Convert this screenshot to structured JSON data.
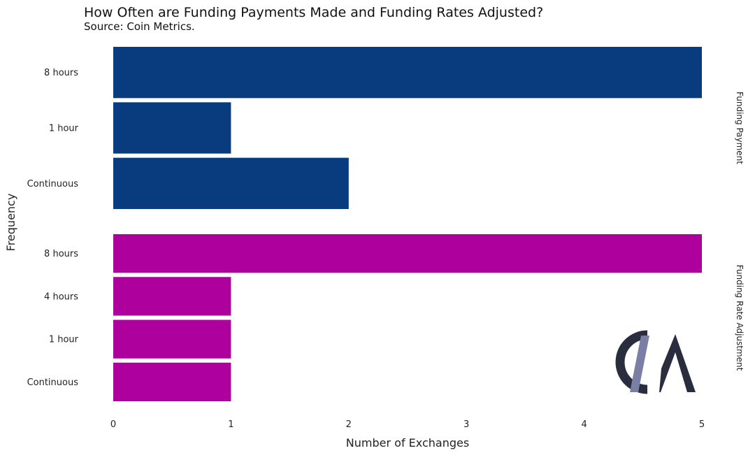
{
  "chart_data": {
    "type": "bar",
    "orientation": "horizontal",
    "title": "How Often are Funding Payments Made and Funding Rates Adjusted?",
    "subtitle": "Source: Coin Metrics.",
    "xlabel": "Number of Exchanges",
    "ylabel": "Frequency",
    "xlim": [
      0,
      5
    ],
    "xticks": [
      0,
      1,
      2,
      3,
      4,
      5
    ],
    "grid": false,
    "facets": [
      {
        "name": "Funding Payment",
        "color": "#083c7f",
        "categories": [
          "8 hours",
          "1 hour",
          "Continuous"
        ],
        "values": [
          5,
          1,
          2
        ]
      },
      {
        "name": "Funding Rate Adjustment",
        "color": "#ae009d",
        "categories": [
          "8 hours",
          "4 hours",
          "1 hour",
          "Continuous"
        ],
        "values": [
          5,
          1,
          1,
          1
        ]
      }
    ]
  },
  "logo": {
    "text": "CM",
    "colors": {
      "dark": "#2a2d3e",
      "slash": "#7b7fa5"
    }
  }
}
